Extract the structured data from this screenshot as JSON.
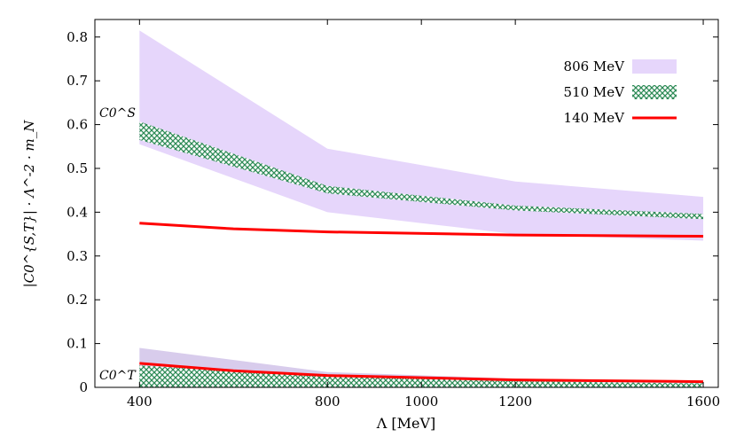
{
  "chart_data": {
    "type": "area",
    "xlabel": "Λ [MeV]",
    "ylabel": "|C0^{S,T}| · Λ^-2 · m_N",
    "xlim": [
      305,
      1632
    ],
    "ylim": [
      0,
      0.84
    ],
    "xticks": [
      400,
      800,
      1000,
      1200,
      1600
    ],
    "yticks": [
      0,
      0.1,
      0.2,
      0.3,
      0.4,
      0.5,
      0.6,
      0.7,
      0.8
    ],
    "grid": false,
    "legend_position": "top-right",
    "annotations": [
      {
        "text": "C0^S"
      },
      {
        "text": "C0^T"
      }
    ],
    "series": [
      {
        "name": "806 MeV",
        "style": "fill",
        "color": "#e6d6fb",
        "x": [
          400,
          800,
          1200,
          1600
        ],
        "upper": [
          0.815,
          0.545,
          0.47,
          0.435
        ],
        "lower": [
          0.555,
          0.4,
          0.35,
          0.335
        ]
      },
      {
        "name": "806 MeV",
        "style": "fill",
        "color": "#d8ccec",
        "x": [
          400,
          800,
          1200,
          1600
        ],
        "upper": [
          0.09,
          0.035,
          0.02,
          0.013
        ],
        "lower": [
          0.04,
          0.02,
          0.012,
          0.008
        ]
      },
      {
        "name": "510 MeV",
        "style": "hatch",
        "color": "#2e8b57",
        "x": [
          400,
          800,
          1200,
          1600
        ],
        "upper": [
          0.607,
          0.46,
          0.415,
          0.396
        ],
        "lower": [
          0.565,
          0.443,
          0.404,
          0.384
        ]
      },
      {
        "name": "510 MeV",
        "style": "hatch",
        "color": "#2e8b57",
        "x": [
          400,
          800,
          1200,
          1600
        ],
        "upper": [
          0.05,
          0.025,
          0.014,
          0.009
        ],
        "lower": [
          0,
          0,
          0,
          0
        ]
      },
      {
        "name": "140 MeV",
        "style": "line",
        "color": "#ff0000",
        "x": [
          400,
          600,
          800,
          1200,
          1600
        ],
        "y": [
          0.375,
          0.362,
          0.355,
          0.348,
          0.345
        ]
      },
      {
        "name": "140 MeV",
        "style": "line",
        "color": "#ff0000",
        "x": [
          400,
          600,
          800,
          1200,
          1600
        ],
        "y": [
          0.055,
          0.038,
          0.027,
          0.017,
          0.013
        ]
      }
    ],
    "legend": [
      "806 MeV",
      "510 MeV",
      "140 MeV"
    ]
  }
}
